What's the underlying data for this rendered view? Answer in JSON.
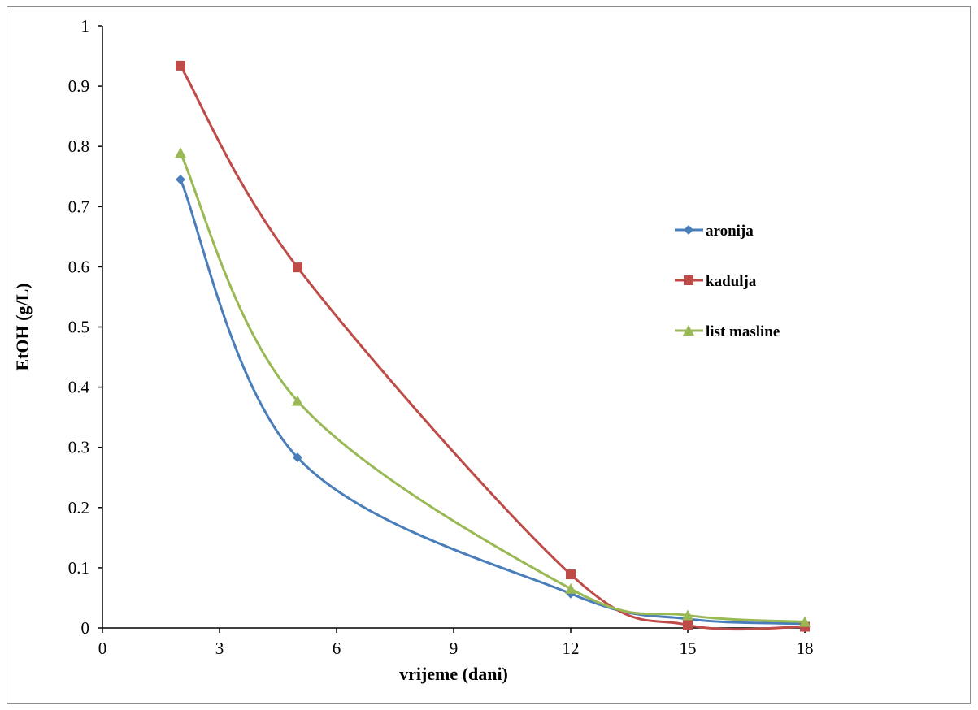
{
  "chart_data": {
    "type": "line",
    "title": "",
    "xlabel": "vrijeme (dani)",
    "ylabel": "EtOH (g/L)",
    "xlim": [
      0,
      18
    ],
    "ylim": [
      0,
      1
    ],
    "xticks": [
      0,
      3,
      6,
      9,
      12,
      15,
      18
    ],
    "yticks": [
      0,
      0.1,
      0.2,
      0.3,
      0.4,
      0.5,
      0.6,
      0.7,
      0.8,
      0.9,
      1
    ],
    "xtick_labels": [
      "0",
      "3",
      "6",
      "9",
      "12",
      "15",
      "18"
    ],
    "ytick_labels": [
      "0",
      "0.1",
      "0.2",
      "0.3",
      "0.4",
      "0.5",
      "0.6",
      "0.7",
      "0.8",
      "0.9",
      "1"
    ],
    "grid": false,
    "legend_position": "right",
    "smooth": true,
    "x": [
      2,
      5,
      12,
      15,
      18
    ],
    "series": [
      {
        "name": "aronija",
        "color": "#4a7ebb",
        "marker": "diamond",
        "values": [
          0.745,
          0.283,
          0.057,
          0.015,
          0.007
        ]
      },
      {
        "name": "kadulja",
        "color": "#be4b48",
        "marker": "square",
        "values": [
          0.934,
          0.599,
          0.089,
          0.005,
          0.002
        ]
      },
      {
        "name": "list masline",
        "color": "#98b954",
        "marker": "triangle",
        "values": [
          0.789,
          0.377,
          0.065,
          0.021,
          0.01
        ]
      }
    ]
  }
}
